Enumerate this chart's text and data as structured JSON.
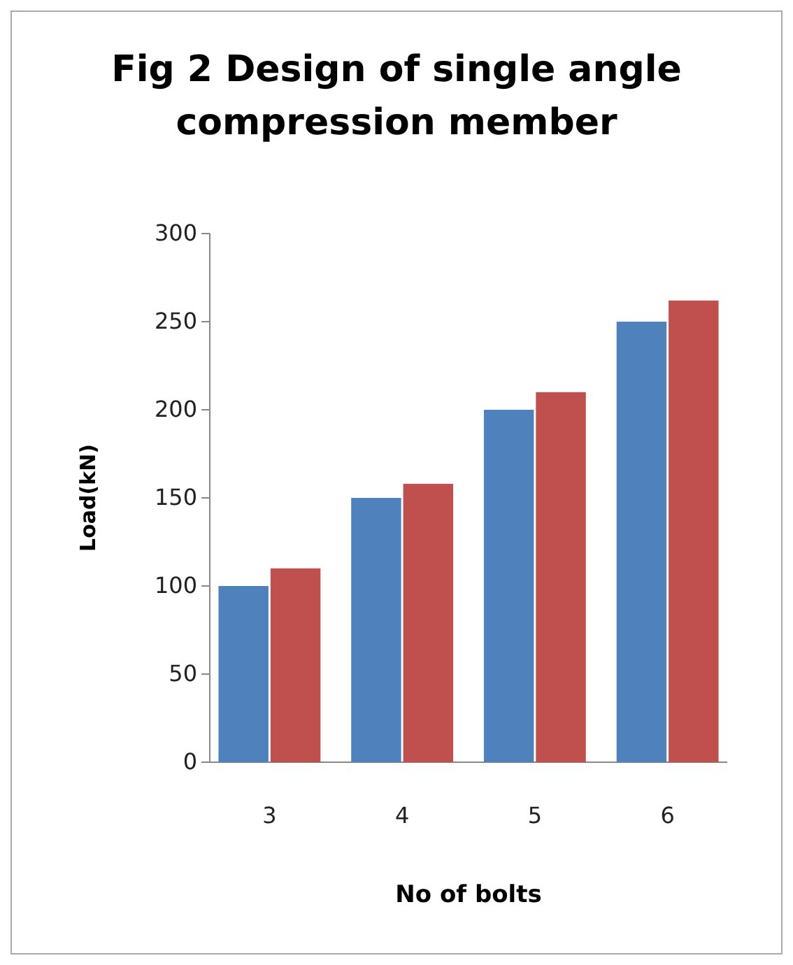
{
  "chart_data": {
    "type": "bar",
    "title": "Fig 2 Design of single angle compression member",
    "xlabel": "No of bolts",
    "ylabel": "Load(kN)",
    "categories": [
      "3",
      "4",
      "5",
      "6"
    ],
    "series": [
      {
        "color": "#4f81bd",
        "values": [
          100,
          150,
          200,
          250
        ]
      },
      {
        "color": "#c0504d",
        "values": [
          110,
          158,
          210,
          262
        ]
      }
    ],
    "ylim": [
      0,
      300
    ],
    "yticks": [
      0,
      50,
      100,
      150,
      200,
      250,
      300
    ],
    "grid": false
  }
}
